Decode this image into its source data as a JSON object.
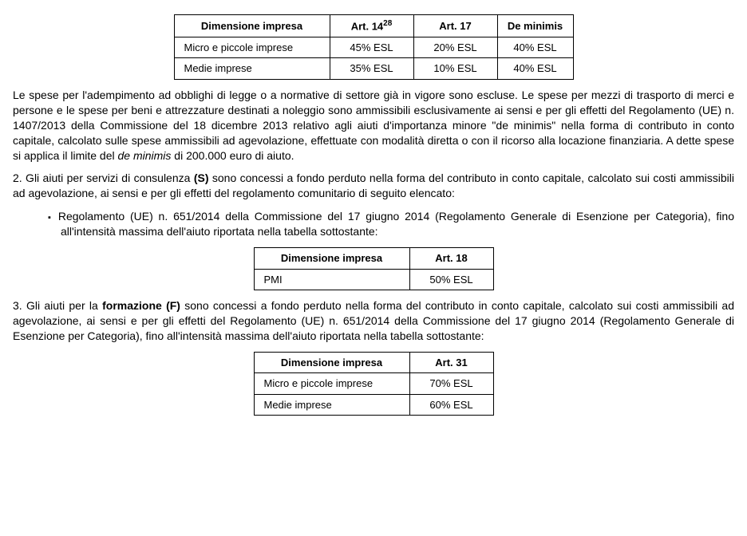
{
  "table1": {
    "headers": [
      "Dimensione impresa",
      "Art. 14",
      "Art. 17",
      "De minimis"
    ],
    "art14_sup": "28",
    "rows": [
      {
        "label": "Micro e piccole imprese",
        "c1": "45% ESL",
        "c2": "20% ESL",
        "c3": "40% ESL"
      },
      {
        "label": "Medie imprese",
        "c1": "35% ESL",
        "c2": "10% ESL",
        "c3": "40% ESL"
      }
    ]
  },
  "para1": "Le spese per l'adempimento ad obblighi di legge o a normative di settore già in vigore sono escluse. Le spese per mezzi di trasporto di merci e persone e le spese per beni e attrezzature destinati a noleggio sono ammissibili esclusivamente ai sensi e per gli effetti del Regolamento (UE) n. 1407/2013 della Commissione del 18 dicembre 2013 relativo agli aiuti d'importanza minore \"de minimis\" nella forma di contributo in conto capitale, calcolato sulle spese ammissibili ad agevolazione, effettuate con modalità diretta o con il ricorso alla locazione finanziaria. A dette spese si applica il limite del ",
  "para1_em": "de minimis",
  "para1_tail": " di 200.000 euro di aiuto.",
  "para2_pre": "2. Gli aiuti per servizi di consulenza ",
  "para2_bold": "(S)",
  "para2_post": " sono concessi a fondo perduto nella forma del contributo in conto capitale, calcolato sui costi ammissibili ad agevolazione, ai sensi e per gli effetti del regolamento comunitario di seguito elencato:",
  "bullet1": "Regolamento (UE) n. 651/2014 della Commissione del 17 giugno 2014 (Regolamento Generale di Esenzione per Categoria), fino all'intensità massima dell'aiuto riportata nella tabella sottostante:",
  "table2": {
    "headers": [
      "Dimensione impresa",
      "Art. 18"
    ],
    "rows": [
      {
        "label": "PMI",
        "c1": "50% ESL"
      }
    ]
  },
  "para3_pre": "3. Gli aiuti per la ",
  "para3_bold": "formazione (F)",
  "para3_post": " sono concessi a fondo perduto nella forma del contributo in conto capitale, calcolato sui costi ammissibili ad agevolazione, ai sensi e per gli effetti del Regolamento (UE) n. 651/2014 della Commissione del 17 giugno 2014 (Regolamento Generale di Esenzione per Categoria), fino all'intensità massima dell'aiuto riportata nella tabella sottostante:",
  "table3": {
    "headers": [
      "Dimensione impresa",
      "Art. 31"
    ],
    "rows": [
      {
        "label": "Micro e piccole imprese",
        "c1": "70% ESL"
      },
      {
        "label": "Medie imprese",
        "c1": "60% ESL"
      }
    ]
  }
}
